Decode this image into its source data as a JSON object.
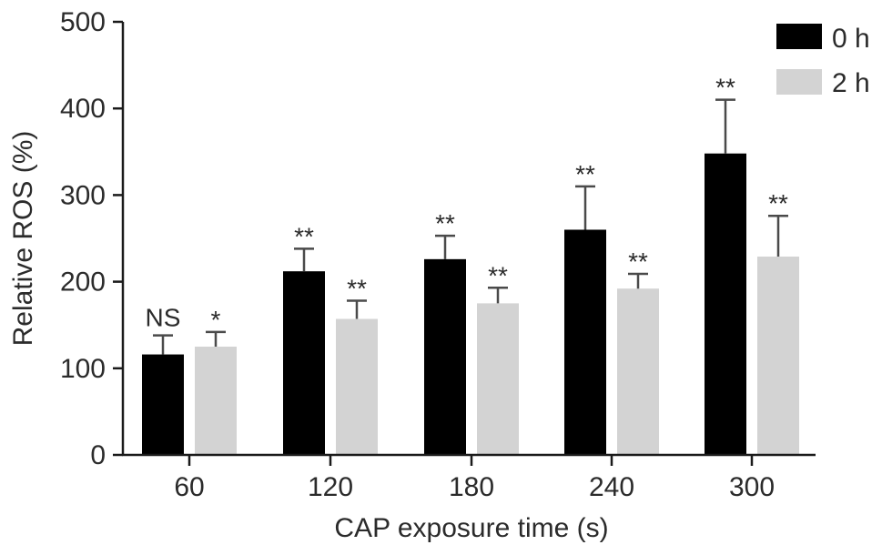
{
  "chart_data": {
    "type": "bar",
    "categories": [
      "60",
      "120",
      "180",
      "240",
      "300"
    ],
    "series": [
      {
        "name": "0 h",
        "color": "#000000",
        "values": [
          116,
          212,
          226,
          260,
          348
        ],
        "errors": [
          22,
          26,
          27,
          50,
          62
        ],
        "significance": [
          "NS",
          "**",
          "**",
          "**",
          "**"
        ]
      },
      {
        "name": "2 h",
        "color": "#d3d3d3",
        "values": [
          125,
          157,
          175,
          192,
          229
        ],
        "errors": [
          17,
          21,
          18,
          17,
          47
        ],
        "significance": [
          "*",
          "**",
          "**",
          "**",
          "**"
        ]
      }
    ],
    "xlabel": "CAP exposure time (s)",
    "ylabel": "Relative ROS (%)",
    "ylim": [
      0,
      500
    ],
    "yticks": [
      "0",
      "100",
      "200",
      "300",
      "400",
      "500"
    ],
    "grid": false,
    "legend_position": "top-right"
  }
}
